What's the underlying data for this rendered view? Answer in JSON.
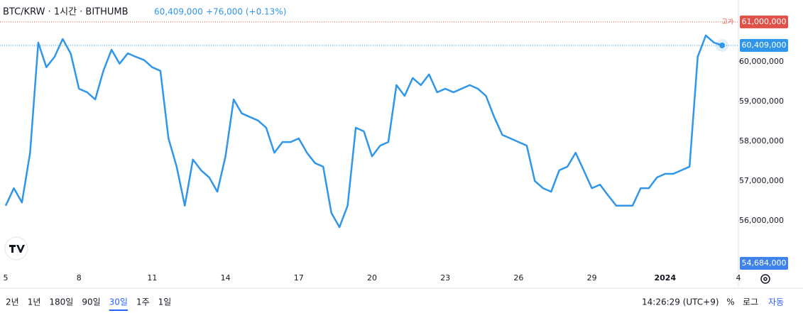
{
  "chart_data": {
    "type": "line",
    "title": "BTC/KRW · 1시간 · BITHUMB",
    "last_price": {
      "value": 60409000,
      "label": "60,409,000"
    },
    "change": "+76,000 (+0.13%)",
    "color": "#2f96ea",
    "categories": [
      "5",
      null,
      null,
      null,
      null,
      null,
      null,
      null,
      null,
      "8",
      null,
      null,
      null,
      null,
      null,
      null,
      null,
      null,
      "11",
      null,
      null,
      null,
      null,
      null,
      null,
      null,
      null,
      "14",
      null,
      null,
      null,
      null,
      null,
      null,
      null,
      null,
      "17",
      null,
      null,
      null,
      null,
      null,
      null,
      null,
      null,
      "20",
      null,
      null,
      null,
      null,
      null,
      null,
      null,
      null,
      "23",
      null,
      null,
      null,
      null,
      null,
      null,
      null,
      null,
      "26",
      null,
      null,
      null,
      null,
      null,
      null,
      null,
      null,
      "29",
      null,
      null,
      null,
      null,
      null,
      null,
      null,
      null,
      "2024",
      null,
      null,
      null,
      null,
      null,
      null,
      null,
      null,
      "4"
    ],
    "values": [
      56380000,
      56820000,
      56460000,
      57710000,
      60480000,
      59860000,
      60120000,
      60570000,
      60200000,
      59320000,
      59230000,
      59050000,
      59770000,
      60300000,
      59950000,
      60210000,
      60120000,
      60040000,
      59860000,
      59770000,
      58070000,
      57360000,
      56380000,
      57540000,
      57270000,
      57090000,
      56730000,
      57620000,
      59050000,
      58700000,
      58610000,
      58520000,
      58340000,
      57710000,
      57980000,
      57980000,
      58070000,
      57710000,
      57450000,
      57360000,
      56200000,
      55840000,
      56380000,
      58340000,
      58250000,
      57620000,
      57890000,
      57980000,
      59410000,
      59140000,
      59590000,
      59410000,
      59680000,
      59230000,
      59320000,
      59230000,
      59320000,
      59410000,
      59320000,
      59140000,
      58610000,
      58160000,
      58070000,
      57980000,
      57890000,
      57000000,
      56820000,
      56730000,
      57270000,
      57360000,
      57710000,
      57270000,
      56820000,
      56910000,
      56640000,
      56380000,
      56380000,
      56380000,
      56820000,
      56820000,
      57090000,
      57180000,
      57180000,
      57270000,
      57360000,
      60120000,
      60660000,
      60480000,
      60409000,
      null,
      null
    ],
    "ylim": [
      54770000,
      61550000
    ],
    "yticks": [
      {
        "value": 56000000,
        "label": "56,000,000"
      },
      {
        "value": 57000000,
        "label": "57,000,000"
      },
      {
        "value": 58000000,
        "label": "58,000,000"
      },
      {
        "value": 59000000,
        "label": "59,000,000"
      },
      {
        "value": 60000000,
        "label": "60,000,000"
      }
    ],
    "log_scale": false,
    "price_lines": [
      {
        "value": 61000000,
        "label": "61,000,000",
        "tag": "고가",
        "color": "#e0514a"
      },
      {
        "value": 60409000,
        "label": "60,409,000",
        "color": "#2f96ea"
      },
      {
        "value": 54684000,
        "label": "54,684,000",
        "color": "#3f82ec"
      }
    ],
    "ranges": [
      "2년",
      "1년",
      "180일",
      "90일",
      "30일",
      "1주",
      "1일"
    ],
    "active_range": 4,
    "clock": "14:26:29 (UTC+9)",
    "controls": [
      "%",
      "로그",
      "자동"
    ]
  }
}
